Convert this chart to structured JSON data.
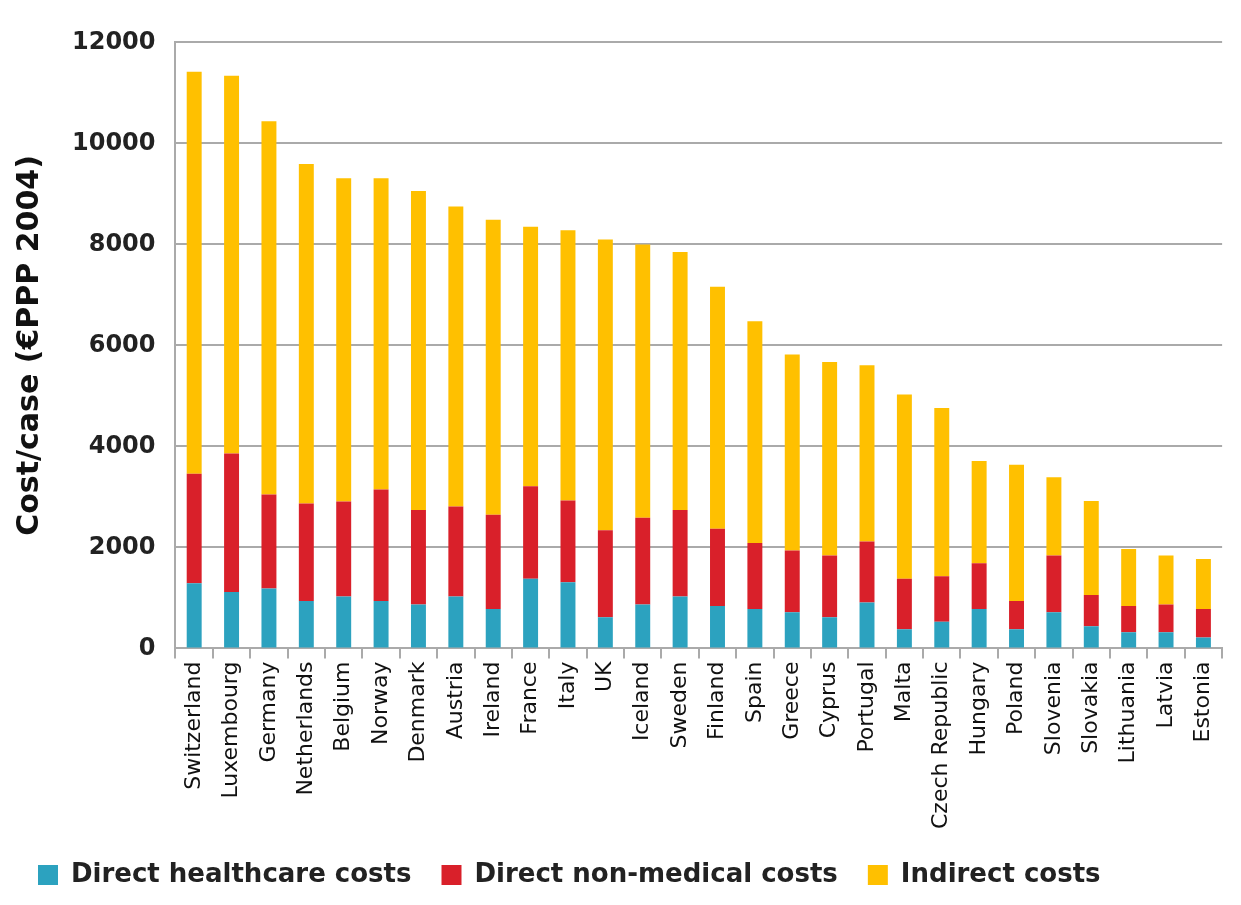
{
  "chart_data": {
    "type": "bar",
    "stacked": true,
    "ylabel": "Cost/case (€PPP 2004)",
    "categories": [
      "Switzerland",
      "Luxembourg",
      "Germany",
      "Netherlands",
      "Belgium",
      "Norway",
      "Denmark",
      "Austria",
      "Ireland",
      "France",
      "Italy",
      "UK",
      "Iceland",
      "Sweden",
      "Finland",
      "Spain",
      "Greece",
      "Cyprus",
      "Portugal",
      "Malta",
      "Czech Republic",
      "Hungary",
      "Poland",
      "Slovenia",
      "Slovakia",
      "Lithuania",
      "Latvia",
      "Estonia"
    ],
    "series": [
      {
        "name": "Direct healthcare costs",
        "color": "#2ca2bf",
        "values": [
          1290,
          1120,
          1190,
          940,
          1030,
          940,
          870,
          1030,
          780,
          1380,
          1310,
          620,
          870,
          1030,
          840,
          780,
          720,
          620,
          910,
          380,
          530,
          780,
          380,
          720,
          440,
          320,
          320,
          220
        ]
      },
      {
        "name": "Direct non-medical costs",
        "color": "#d9202a",
        "values": [
          2170,
          2740,
          1860,
          1930,
          1880,
          2210,
          1870,
          1780,
          1870,
          1830,
          1620,
          1720,
          1720,
          1710,
          1530,
          1310,
          1220,
          1220,
          1210,
          1000,
          900,
          910,
          560,
          1120,
          620,
          520,
          550,
          560
        ]
      },
      {
        "name": "Indirect costs",
        "color": "#ffc000",
        "values": [
          7960,
          7480,
          7390,
          6720,
          6400,
          6160,
          6320,
          5940,
          5840,
          5140,
          5350,
          5760,
          5410,
          5110,
          4790,
          4390,
          3880,
          3830,
          3490,
          3650,
          3330,
          2020,
          2700,
          1550,
          1860,
          1130,
          970,
          990
        ]
      }
    ],
    "ylim": [
      0,
      12000
    ],
    "yticks": [
      0,
      2000,
      4000,
      6000,
      8000,
      10000,
      12000
    ],
    "grid": "y",
    "legend": "bottom"
  }
}
